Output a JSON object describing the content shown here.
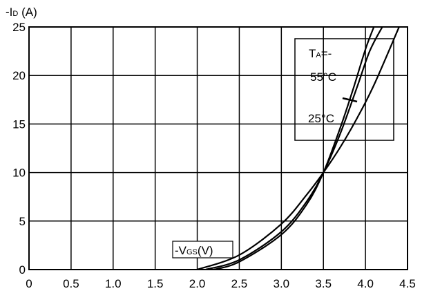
{
  "chart_data": {
    "type": "line",
    "title": "",
    "ylabel_prefix": "-I",
    "ylabel_sub": "D",
    "ylabel_suffix": " (A)",
    "xlabel_prefix": "-V",
    "xlabel_sub": "GS",
    "xlabel_suffix": "(V)",
    "xlim": [
      0,
      4.5
    ],
    "ylim": [
      0,
      25
    ],
    "x_ticks": [
      0,
      0.5,
      1.0,
      1.5,
      2.0,
      2.5,
      3.0,
      3.5,
      4.0,
      4.5
    ],
    "x_tick_labels": [
      "0",
      "0.5",
      "1.0",
      "1.5",
      "2.0",
      "2.5",
      "3.0",
      "3.5",
      "4.0",
      "4.5"
    ],
    "y_ticks": [
      0,
      5,
      10,
      15,
      20,
      25
    ],
    "y_tick_labels": [
      "0",
      "5",
      "10",
      "15",
      "20",
      "25"
    ],
    "grid": true,
    "legend": {
      "temp_prefix": "T",
      "temp_sub": "A",
      "temp_suffix": "=-",
      "label_cold": "55°C",
      "label_room": "25°C",
      "placement": "top-right"
    },
    "series": [
      {
        "x": [
          2.0,
          2.5,
          3.0,
          3.3,
          3.5,
          3.7,
          3.9,
          4.1,
          4.4
        ],
        "y": [
          0,
          1.5,
          4.7,
          7.7,
          10,
          12.6,
          15.6,
          19.0,
          25
        ]
      },
      {
        "x": [
          2.1,
          2.5,
          3.0,
          3.3,
          3.5,
          3.7,
          3.9,
          4.05,
          4.2
        ],
        "y": [
          0,
          1.0,
          3.9,
          7.0,
          10,
          14.0,
          18.8,
          22.5,
          25
        ]
      },
      {
        "x": [
          2.2,
          2.5,
          3.0,
          3.3,
          3.5,
          3.7,
          3.85,
          4.0,
          4.1
        ],
        "y": [
          0,
          0.8,
          3.6,
          6.7,
          10,
          14.6,
          18.5,
          22.7,
          25
        ]
      }
    ]
  }
}
